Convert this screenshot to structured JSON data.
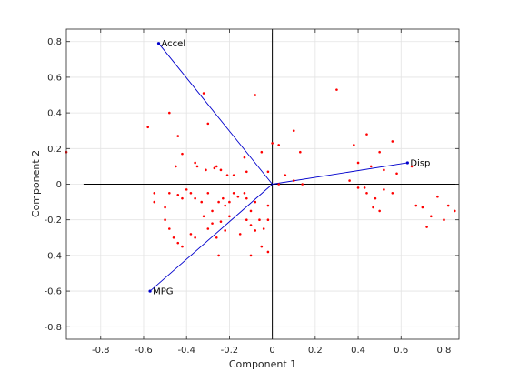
{
  "chart_data": {
    "type": "scatter",
    "subtype": "biplot",
    "title": "",
    "xlabel": "Component 1",
    "ylabel": "Component 2",
    "xlim": [
      -0.96,
      0.87
    ],
    "ylim": [
      -0.87,
      0.87
    ],
    "xticks": [
      -0.8,
      -0.6,
      -0.4,
      -0.2,
      0,
      0.2,
      0.4,
      0.6,
      0.8
    ],
    "yticks": [
      -0.8,
      -0.6,
      -0.4,
      -0.2,
      0,
      0.2,
      0.4,
      0.6,
      0.8
    ],
    "xtick_labels": [
      "-0.8",
      "-0.6",
      "-0.4",
      "-0.2",
      "0",
      "0.2",
      "0.4",
      "0.6",
      "0.8"
    ],
    "ytick_labels": [
      "-0.8",
      "-0.6",
      "-0.4",
      "-0.2",
      "0",
      "0.2",
      "0.4",
      "0.6",
      "0.8"
    ],
    "grid": true,
    "reference_lines": {
      "x_axis_extent": [
        -0.88,
        0.87
      ],
      "y_axis_extent": [
        -0.87,
        0.87
      ],
      "color": "#000000"
    },
    "vectors": [
      {
        "label": "Accel",
        "x": -0.53,
        "y": 0.79
      },
      {
        "label": "Disp",
        "x": 0.63,
        "y": 0.12
      },
      {
        "label": "MPG",
        "x": -0.57,
        "y": -0.6
      }
    ],
    "vector_color": "#0000cc",
    "point_color": "#ff0000",
    "points": [
      [
        -0.96,
        0.18
      ],
      [
        -0.58,
        0.32
      ],
      [
        -0.48,
        0.4
      ],
      [
        -0.32,
        0.51
      ],
      [
        -0.3,
        0.34
      ],
      [
        -0.08,
        0.5
      ],
      [
        0.3,
        0.53
      ],
      [
        -0.44,
        0.27
      ],
      [
        -0.42,
        0.17
      ],
      [
        -0.45,
        0.1
      ],
      [
        -0.36,
        0.12
      ],
      [
        -0.35,
        0.1
      ],
      [
        -0.31,
        0.08
      ],
      [
        -0.27,
        0.09
      ],
      [
        -0.26,
        0.1
      ],
      [
        -0.24,
        0.08
      ],
      [
        -0.21,
        0.05
      ],
      [
        -0.18,
        0.05
      ],
      [
        -0.13,
        0.15
      ],
      [
        -0.12,
        0.07
      ],
      [
        -0.05,
        0.18
      ],
      [
        0.0,
        0.23
      ],
      [
        0.03,
        0.22
      ],
      [
        0.1,
        0.3
      ],
      [
        0.13,
        0.18
      ],
      [
        0.06,
        0.05
      ],
      [
        0.03,
        0.0
      ],
      [
        0.1,
        0.02
      ],
      [
        0.14,
        0.0
      ],
      [
        -0.02,
        0.07
      ],
      [
        -0.55,
        -0.05
      ],
      [
        -0.55,
        -0.1
      ],
      [
        -0.5,
        -0.13
      ],
      [
        -0.48,
        -0.05
      ],
      [
        -0.44,
        -0.06
      ],
      [
        -0.42,
        -0.08
      ],
      [
        -0.4,
        -0.03
      ],
      [
        -0.38,
        -0.05
      ],
      [
        -0.36,
        -0.08
      ],
      [
        -0.33,
        -0.1
      ],
      [
        -0.3,
        -0.05
      ],
      [
        -0.28,
        -0.15
      ],
      [
        -0.25,
        -0.1
      ],
      [
        -0.23,
        -0.08
      ],
      [
        -0.22,
        -0.12
      ],
      [
        -0.2,
        -0.1
      ],
      [
        -0.18,
        -0.05
      ],
      [
        -0.16,
        -0.07
      ],
      [
        -0.13,
        -0.05
      ],
      [
        -0.12,
        -0.08
      ],
      [
        -0.1,
        -0.15
      ],
      [
        -0.08,
        -0.1
      ],
      [
        -0.06,
        -0.2
      ],
      [
        -0.04,
        -0.25
      ],
      [
        -0.02,
        -0.12
      ],
      [
        -0.5,
        -0.2
      ],
      [
        -0.48,
        -0.25
      ],
      [
        -0.46,
        -0.3
      ],
      [
        -0.44,
        -0.33
      ],
      [
        -0.42,
        -0.35
      ],
      [
        -0.38,
        -0.28
      ],
      [
        -0.36,
        -0.3
      ],
      [
        -0.32,
        -0.18
      ],
      [
        -0.3,
        -0.25
      ],
      [
        -0.28,
        -0.22
      ],
      [
        -0.26,
        -0.3
      ],
      [
        -0.24,
        -0.21
      ],
      [
        -0.22,
        -0.26
      ],
      [
        -0.2,
        -0.18
      ],
      [
        -0.15,
        -0.28
      ],
      [
        -0.12,
        -0.2
      ],
      [
        -0.1,
        -0.23
      ],
      [
        -0.08,
        -0.26
      ],
      [
        -0.05,
        -0.35
      ],
      [
        -0.02,
        -0.38
      ],
      [
        -0.25,
        -0.4
      ],
      [
        -0.1,
        -0.4
      ],
      [
        -0.02,
        -0.2
      ],
      [
        0.38,
        0.22
      ],
      [
        0.44,
        0.28
      ],
      [
        0.5,
        0.18
      ],
      [
        0.56,
        0.24
      ],
      [
        0.4,
        0.12
      ],
      [
        0.46,
        0.1
      ],
      [
        0.52,
        0.08
      ],
      [
        0.58,
        0.06
      ],
      [
        0.36,
        0.02
      ],
      [
        0.4,
        -0.02
      ],
      [
        0.44,
        -0.05
      ],
      [
        0.48,
        -0.08
      ],
      [
        0.52,
        -0.03
      ],
      [
        0.56,
        -0.05
      ],
      [
        0.47,
        -0.13
      ],
      [
        0.5,
        -0.15
      ],
      [
        0.43,
        -0.02
      ],
      [
        0.67,
        -0.12
      ],
      [
        0.7,
        -0.13
      ],
      [
        0.74,
        -0.18
      ],
      [
        0.77,
        -0.07
      ],
      [
        0.82,
        -0.12
      ],
      [
        0.85,
        -0.15
      ],
      [
        0.72,
        -0.24
      ],
      [
        0.8,
        -0.2
      ],
      [
        0.65,
        0.1
      ]
    ]
  }
}
